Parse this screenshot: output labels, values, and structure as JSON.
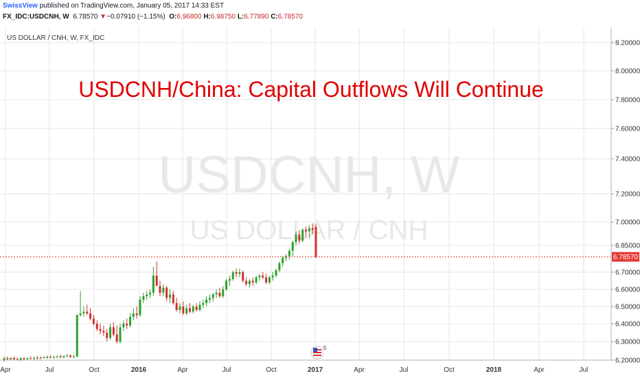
{
  "header": {
    "publisher": "SwissView",
    "published_text": " published on TradingView.com, January 05, 2017 14:33 EST",
    "symbol_text": "FX_IDC:USDCNH, W",
    "last": "6.78570",
    "change": "−0.07910 (−1.15%)",
    "o_label": "O:",
    "o_value": "6.96800",
    "h_label": "H:",
    "h_value": "6.98750",
    "l_label": "L:",
    "l_value": "6.77890",
    "c_label": "C:",
    "c_value": "6.78570"
  },
  "chart_data": {
    "type": "candlestick",
    "instrument_label": "US DOLLAR / CNH, W, FX_IDC",
    "title": "USDCNH/China: Capital Outflows Will Continue",
    "watermark_symbol": "USDCNH, W",
    "watermark_name": "US DOLLAR / CNH",
    "price_label": "6.78570",
    "ylim": [
      6.2,
      8.25
    ],
    "y_ticks": [
      6.2,
      6.3,
      6.4,
      6.5,
      6.6,
      6.7,
      6.85,
      7.0,
      7.2,
      7.4,
      7.6,
      7.8,
      8.0,
      8.2
    ],
    "y_tick_labels": [
      "6.20000",
      "6.30000",
      "6.40000",
      "6.50000",
      "6.60000",
      "6.70000",
      "6.85000",
      "7.00000",
      "7.20000",
      "7.40000",
      "7.60000",
      "7.80000",
      "8.00000",
      "8.20000"
    ],
    "x_ticks": [
      "Apr",
      "Jul",
      "Oct",
      "2016",
      "Apr",
      "Jul",
      "Oct",
      "2017",
      "Apr",
      "Jul",
      "Oct",
      "2018",
      "Apr",
      "Jul"
    ],
    "bold_ticks": [
      "2016",
      "2017",
      "2018"
    ],
    "event_badge": "5",
    "colors": {
      "up": "#2ca02c",
      "down": "#d32f2f",
      "price_line": "#e53935",
      "grid": "#e6e6e6",
      "title": "#e00000",
      "watermark": "#e8e8e8"
    },
    "candles": [
      [
        6.2,
        6.22,
        6.19,
        6.21
      ],
      [
        6.21,
        6.22,
        6.2,
        6.205
      ],
      [
        6.205,
        6.215,
        6.198,
        6.212
      ],
      [
        6.212,
        6.22,
        6.2,
        6.205
      ],
      [
        6.205,
        6.215,
        6.198,
        6.2
      ],
      [
        6.2,
        6.215,
        6.195,
        6.21
      ],
      [
        6.21,
        6.215,
        6.198,
        6.205
      ],
      [
        6.205,
        6.215,
        6.2,
        6.21
      ],
      [
        6.21,
        6.22,
        6.205,
        6.208
      ],
      [
        6.208,
        6.218,
        6.2,
        6.212
      ],
      [
        6.212,
        6.222,
        6.205,
        6.21
      ],
      [
        6.21,
        6.22,
        6.205,
        6.215
      ],
      [
        6.215,
        6.22,
        6.21,
        6.212
      ],
      [
        6.212,
        6.225,
        6.208,
        6.218
      ],
      [
        6.218,
        6.225,
        6.21,
        6.214
      ],
      [
        6.214,
        6.222,
        6.208,
        6.218
      ],
      [
        6.218,
        6.226,
        6.21,
        6.22
      ],
      [
        6.22,
        6.23,
        6.21,
        6.215
      ],
      [
        6.215,
        6.225,
        6.21,
        6.222
      ],
      [
        6.222,
        6.232,
        6.215,
        6.225
      ],
      [
        6.225,
        6.23,
        6.212,
        6.218
      ],
      [
        6.218,
        6.228,
        6.21,
        6.22
      ],
      [
        6.22,
        6.455,
        6.215,
        6.45
      ],
      [
        6.45,
        6.59,
        6.44,
        6.46
      ],
      [
        6.46,
        6.5,
        6.44,
        6.47
      ],
      [
        6.47,
        6.51,
        6.45,
        6.46
      ],
      [
        6.46,
        6.49,
        6.42,
        6.43
      ],
      [
        6.43,
        6.45,
        6.39,
        6.4
      ],
      [
        6.4,
        6.42,
        6.36,
        6.37
      ],
      [
        6.37,
        6.4,
        6.34,
        6.36
      ],
      [
        6.36,
        6.39,
        6.33,
        6.35
      ],
      [
        6.35,
        6.37,
        6.3,
        6.32
      ],
      [
        6.32,
        6.4,
        6.31,
        6.38
      ],
      [
        6.38,
        6.41,
        6.33,
        6.34
      ],
      [
        6.34,
        6.39,
        6.29,
        6.3
      ],
      [
        6.3,
        6.4,
        6.29,
        6.38
      ],
      [
        6.38,
        6.42,
        6.36,
        6.4
      ],
      [
        6.4,
        6.43,
        6.37,
        6.39
      ],
      [
        6.39,
        6.46,
        6.38,
        6.44
      ],
      [
        6.44,
        6.49,
        6.42,
        6.46
      ],
      [
        6.46,
        6.5,
        6.43,
        6.45
      ],
      [
        6.45,
        6.56,
        6.44,
        6.54
      ],
      [
        6.54,
        6.58,
        6.52,
        6.56
      ],
      [
        6.56,
        6.59,
        6.54,
        6.57
      ],
      [
        6.57,
        6.6,
        6.55,
        6.58
      ],
      [
        6.58,
        6.73,
        6.56,
        6.68
      ],
      [
        6.68,
        6.76,
        6.62,
        6.62
      ],
      [
        6.62,
        6.65,
        6.56,
        6.58
      ],
      [
        6.58,
        6.63,
        6.56,
        6.61
      ],
      [
        6.61,
        6.62,
        6.53,
        6.55
      ],
      [
        6.55,
        6.6,
        6.52,
        6.57
      ],
      [
        6.57,
        6.59,
        6.51,
        6.52
      ],
      [
        6.52,
        6.55,
        6.47,
        6.48
      ],
      [
        6.48,
        6.52,
        6.46,
        6.5
      ],
      [
        6.5,
        6.53,
        6.45,
        6.46
      ],
      [
        6.46,
        6.51,
        6.45,
        6.49
      ],
      [
        6.49,
        6.52,
        6.46,
        6.47
      ],
      [
        6.47,
        6.51,
        6.46,
        6.5
      ],
      [
        6.5,
        6.52,
        6.47,
        6.48
      ],
      [
        6.48,
        6.53,
        6.47,
        6.51
      ],
      [
        6.51,
        6.54,
        6.49,
        6.52
      ],
      [
        6.52,
        6.56,
        6.5,
        6.54
      ],
      [
        6.54,
        6.57,
        6.52,
        6.55
      ],
      [
        6.55,
        6.58,
        6.53,
        6.57
      ],
      [
        6.57,
        6.6,
        6.55,
        6.58
      ],
      [
        6.58,
        6.61,
        6.55,
        6.56
      ],
      [
        6.56,
        6.62,
        6.55,
        6.6
      ],
      [
        6.6,
        6.66,
        6.59,
        6.65
      ],
      [
        6.65,
        6.68,
        6.62,
        6.66
      ],
      [
        6.66,
        6.71,
        6.65,
        6.7
      ],
      [
        6.7,
        6.72,
        6.67,
        6.69
      ],
      [
        6.69,
        6.72,
        6.67,
        6.7
      ],
      [
        6.7,
        6.71,
        6.64,
        6.65
      ],
      [
        6.65,
        6.67,
        6.62,
        6.63
      ],
      [
        6.63,
        6.66,
        6.61,
        6.65
      ],
      [
        6.65,
        6.67,
        6.62,
        6.64
      ],
      [
        6.64,
        6.68,
        6.63,
        6.67
      ],
      [
        6.67,
        6.69,
        6.65,
        6.68
      ],
      [
        6.68,
        6.7,
        6.66,
        6.67
      ],
      [
        6.67,
        6.69,
        6.63,
        6.64
      ],
      [
        6.64,
        6.68,
        6.63,
        6.67
      ],
      [
        6.67,
        6.7,
        6.65,
        6.68
      ],
      [
        6.68,
        6.72,
        6.67,
        6.71
      ],
      [
        6.71,
        6.76,
        6.7,
        6.75
      ],
      [
        6.75,
        6.79,
        6.73,
        6.78
      ],
      [
        6.78,
        6.8,
        6.76,
        6.79
      ],
      [
        6.79,
        6.83,
        6.77,
        6.82
      ],
      [
        6.82,
        6.88,
        6.79,
        6.87
      ],
      [
        6.87,
        6.94,
        6.85,
        6.92
      ],
      [
        6.92,
        6.95,
        6.86,
        6.88
      ],
      [
        6.88,
        6.96,
        6.87,
        6.95
      ],
      [
        6.95,
        6.97,
        6.9,
        6.94
      ],
      [
        6.94,
        6.98,
        6.9,
        6.96
      ],
      [
        6.96,
        6.99,
        6.92,
        6.95
      ],
      [
        6.968,
        6.9875,
        6.7789,
        6.7857
      ]
    ]
  }
}
